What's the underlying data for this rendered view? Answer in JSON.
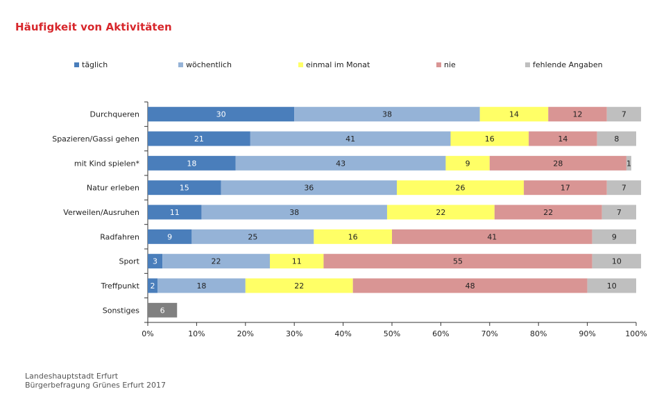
{
  "title": "Häufigkeit von Aktivitäten",
  "footer": {
    "line1": "Landeshauptstadt Erfurt",
    "line2": "Bürgerbefragung Grünes Erfurt 2017"
  },
  "chart_data": {
    "type": "bar",
    "orientation": "horizontal",
    "stacked": true,
    "xlim": [
      0,
      100
    ],
    "x_ticks": [
      "0%",
      "10%",
      "20%",
      "30%",
      "40%",
      "50%",
      "60%",
      "70%",
      "80%",
      "90%",
      "100%"
    ],
    "legend_position": "top",
    "categories": [
      "Durchqueren",
      "Spazieren/Gassi gehen",
      "mit Kind spielen*",
      "Natur erleben",
      "Verweilen/Ausruhen",
      "Radfahren",
      "Sport",
      "Treffpunkt",
      "Sonstiges"
    ],
    "series": [
      {
        "name": "täglich",
        "color": "#4a7ebb",
        "values": [
          30,
          21,
          18,
          15,
          11,
          9,
          3,
          2,
          null
        ]
      },
      {
        "name": "wöchentlich",
        "color": "#95b3d7",
        "values": [
          38,
          41,
          43,
          36,
          38,
          25,
          22,
          18,
          null
        ]
      },
      {
        "name": "einmal im Monat",
        "color": "#ffff66",
        "values": [
          14,
          16,
          9,
          26,
          22,
          16,
          11,
          22,
          null
        ]
      },
      {
        "name": "nie",
        "color": "#d99594",
        "values": [
          12,
          14,
          28,
          17,
          22,
          41,
          55,
          48,
          null
        ]
      },
      {
        "name": "fehlende Angaben",
        "color": "#bfbfbf",
        "values": [
          7,
          8,
          1,
          7,
          7,
          9,
          10,
          10,
          null
        ]
      }
    ],
    "other_bar": {
      "category": "Sonstiges",
      "value": 6,
      "color": "#808080"
    }
  }
}
